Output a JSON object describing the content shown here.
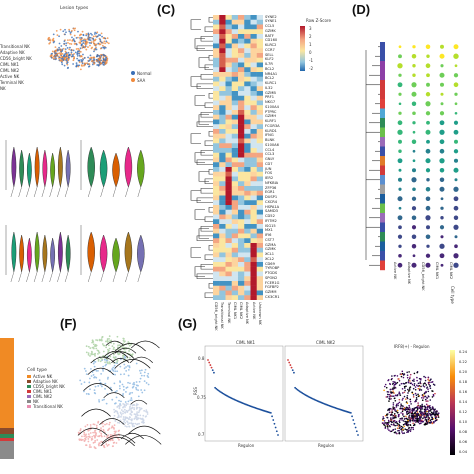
{
  "panels": {
    "c_label": "(C)",
    "d_label": "(D)",
    "f_label": "(F)",
    "g_label": "(G)"
  },
  "umap_a": {
    "title": "Lesion types",
    "legend": [
      "Normal",
      "SAA"
    ],
    "colors": {
      "normal": "#3b6fb6",
      "saa": "#f08a3c"
    },
    "celltypes": [
      "Transitional NK",
      "Adaptive NK",
      "CD56_bright NK",
      "CIML NK1",
      "CIML NK2",
      "Active NK",
      "Terminal NK",
      "NK"
    ]
  },
  "heatmap_c": {
    "legend_title": "Row Z-Score",
    "legend_ticks": [
      "3",
      "2",
      "1",
      "0",
      "-1",
      "-2"
    ],
    "genes": [
      "SYNE2",
      "SYNE1",
      "CCL5",
      "GZMK",
      "BATF",
      "CD160",
      "KLRC2",
      "CCR7",
      "SELL",
      "KLF2",
      "IL7R",
      "BCL2",
      "NR4A1",
      "BCL2",
      "KLRC1",
      "IL32",
      "GZMB",
      "PRF1",
      "NKG7",
      "S100A4",
      "PTPRC",
      "GZMH",
      "KLRF1",
      "FCGR3A",
      "KLRD1",
      "IFNG",
      "BLNK",
      "S100A6",
      "CCL4",
      "CCL3",
      "GNLY",
      "CD7",
      "JUN",
      "FOS",
      "IER2",
      "NFKBIA",
      "ZFP36",
      "EGR1",
      "DUSP1",
      "CXCR4",
      "HSPA1A",
      "SAMD3",
      "CD52",
      "IFITM2",
      "ISG15",
      "MX1",
      "IFI6",
      "CST7",
      "GZMA",
      "GZMK",
      "XCL1",
      "XCL2",
      "CD69",
      "TYROBP",
      "PTGDS",
      "SPON2",
      "FCER1G",
      "FGFBP2",
      "GZMM",
      "CX3CR1"
    ],
    "columns": [
      "CD56_bright NK",
      "Transitional NK",
      "Terminal NK",
      "CIML NK1",
      "CIML NK2",
      "Adaptive NK",
      "Active NK",
      "Unknown NK"
    ]
  },
  "dotplot_d": {
    "xlabel": "Cell type",
    "columns": [
      "Active NK",
      "Adaptive NK",
      "CD56_bright NK",
      "CIML NK1",
      "CIML NK2"
    ],
    "row_colors": [
      "#3a4fa8",
      "#3a4fa8",
      "#8d3fa6",
      "#8d3fa6",
      "#d23a3a",
      "#d23a3a",
      "#e0403a",
      "#4fa7d6",
      "#2e8b57",
      "#6abf4b",
      "#9a6bb8",
      "#3a4fa8",
      "#e07b2a",
      "#d23a3a",
      "#5b8fd0",
      "#a0a0a0",
      "#1b5e9e",
      "#6abf4b",
      "#9a6bb8",
      "#3a4fa8",
      "#2e8b57",
      "#1b5e9e",
      "#3a4fa8",
      "#e0403a"
    ]
  },
  "bar_e": {
    "legend_title": "Cell type",
    "legend": [
      "Active NK",
      "Adaptive NK",
      "CD56_bright NK",
      "CIML NK1",
      "CIML NK2",
      "NK",
      "Transitional NK"
    ]
  },
  "rank_g": {
    "left_title": "CIML NK1",
    "right_title": "CIML NK2",
    "xlabel": "Regulon",
    "ylabel": "RSS",
    "yticks_left": [
      "0.8",
      "0.75",
      "0.7"
    ],
    "umap_title": "IRF8(+) - Regulon",
    "colorbar_ticks": [
      "0.24",
      "0.22",
      "0.20",
      "0.18",
      "0.16",
      "0.14",
      "0.12",
      "0.10",
      "0.08",
      "0.06",
      "0.04"
    ]
  }
}
